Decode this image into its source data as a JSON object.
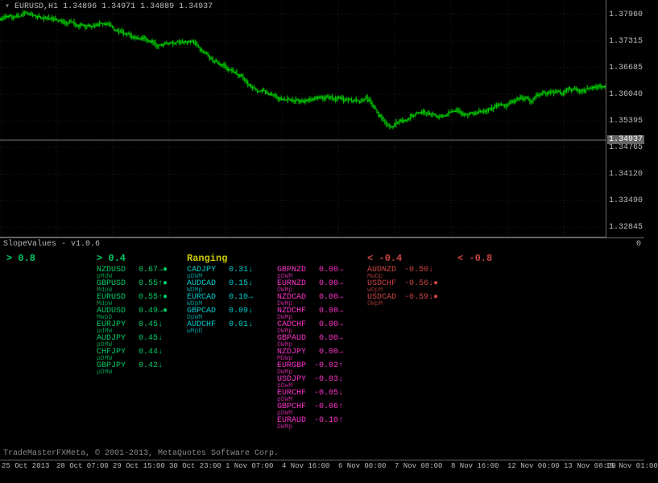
{
  "chart": {
    "symbol": "EURUSD,H1",
    "ohlc": "1.34896 1.34971 1.34889 1.34937",
    "current_price": "1.34937",
    "y_ticks": [
      "1.37960",
      "1.37315",
      "1.36685",
      "1.36040",
      "1.35395",
      "1.34765",
      "1.34120",
      "1.33490",
      "1.32845"
    ],
    "y_min": 1.326,
    "y_max": 1.383,
    "price_line_y": 1.34937,
    "bar_color": "#00ff00",
    "grid_color": "#333333",
    "x_ticks": [
      "25 Oct 2013",
      "28 Oct 07:00",
      "29 Oct 15:00",
      "30 Oct 23:00",
      "1 Nov 07:00",
      "4 Nov 16:00",
      "6 Nov 00:00",
      "7 Nov 08:00",
      "8 Nov 16:00",
      "12 Nov 00:00",
      "13 Nov 08:00",
      "15 Nov 01:00"
    ],
    "x_tick_positions": [
      2,
      70,
      140,
      210,
      280,
      350,
      420,
      490,
      560,
      630,
      700,
      752
    ]
  },
  "indicator": {
    "title": "SlopeValues - v1.0.6",
    "y_label": "0",
    "columns": [
      {
        "header": "> 0.8",
        "x": 8,
        "color": "#00cc66",
        "pairs": []
      },
      {
        "header": "> 0.4",
        "x": 120,
        "color": "#00cc66",
        "pairs": [
          {
            "sym": "NZDUSD",
            "val": "0.67",
            "arr": "→●",
            "sub": "pMdW"
          },
          {
            "sym": "GBPUSD",
            "val": "0.55",
            "arr": "↑●",
            "sub": "MdpW"
          },
          {
            "sym": "EURUSD",
            "val": "0.55",
            "arr": "↑●",
            "sub": "MdpW"
          },
          {
            "sym": "AUDUSD",
            "val": "0.49",
            "arr": "→●",
            "sub": "MWpD"
          },
          {
            "sym": "EURJPY",
            "val": "0.45",
            "arr": "↓",
            "sub": "pdMW"
          },
          {
            "sym": "AUDJPY",
            "val": "0.45",
            "arr": "↓",
            "sub": "pDMW"
          },
          {
            "sym": "CHFJPY",
            "val": "0.44",
            "arr": "↓",
            "sub": "pDMW"
          },
          {
            "sym": "GBPJPY",
            "val": "0.42",
            "arr": "↓",
            "sub": "pDMW"
          }
        ]
      },
      {
        "header": "Ranging",
        "x": 232,
        "color": "#cccc00",
        "pair_color": "#00cccc",
        "pairs": [
          {
            "sym": "CADJPY",
            "val": "0.31",
            "arr": "↓",
            "sub": "pDWM"
          },
          {
            "sym": "AUDCAD",
            "val": "0.15",
            "arr": "↓",
            "sub": "WDMp"
          },
          {
            "sym": "EURCAD",
            "val": "0.10",
            "arr": "→",
            "sub": "WDpM"
          },
          {
            "sym": "GBPCAD",
            "val": "0.09",
            "arr": "↓",
            "sub": "DpWM"
          },
          {
            "sym": "AUDCHF",
            "val": "0.01",
            "arr": "↓",
            "sub": "wMpD"
          }
        ]
      },
      {
        "header": "",
        "x": 344,
        "color": "#ff33cc",
        "pairs": [
          {
            "sym": "GBPNZD",
            "val": "0.00",
            "arr": "→",
            "sub": "pDWM"
          },
          {
            "sym": "EURNZD",
            "val": "0.00",
            "arr": "→",
            "sub": "DWMp"
          },
          {
            "sym": "NZDCAD",
            "val": "0.00",
            "arr": "→",
            "sub": "DWMp"
          },
          {
            "sym": "NZDCHF",
            "val": "0.00",
            "arr": "→",
            "sub": "DWMp"
          },
          {
            "sym": "CADCHF",
            "val": "0.00",
            "arr": "→",
            "sub": "DWMp"
          },
          {
            "sym": "GBPAUD",
            "val": "0.00",
            "arr": "→",
            "sub": "DWMp"
          },
          {
            "sym": "NZDJPY",
            "val": "0.00",
            "arr": "→",
            "sub": "MDWp"
          },
          {
            "sym": "EURGBP",
            "val": "-0.02",
            "arr": "↑",
            "sub": "DWMp"
          },
          {
            "sym": "USDJPY",
            "val": "-0.03",
            "arr": "↓",
            "sub": "pDwM"
          },
          {
            "sym": "EURCHF",
            "val": "-0.05",
            "arr": "↓",
            "sub": "pDWM"
          },
          {
            "sym": "GBPCHF",
            "val": "-0.06",
            "arr": "↑",
            "sub": "pDWM"
          },
          {
            "sym": "EURAUD",
            "val": "-0.10",
            "arr": "↑",
            "sub": "DWMp"
          }
        ]
      },
      {
        "header": "< -0.4",
        "x": 456,
        "color": "#cc4444",
        "pairs": [
          {
            "sym": "AUDNZD",
            "val": "-0.50",
            "arr": "↓",
            "sub": "MwDp"
          },
          {
            "sym": "USDCHF",
            "val": "-0.56",
            "arr": "↓●",
            "sub": "wDpM"
          },
          {
            "sym": "USDCAD",
            "val": "-0.59",
            "arr": "↓●",
            "sub": "DWpM"
          }
        ]
      },
      {
        "header": "< -0.8",
        "x": 568,
        "color": "#cc4444",
        "pairs": []
      }
    ]
  },
  "copyright": "TradeMasterFXMeta, © 2001-2013, MetaQuotes Software Corp."
}
